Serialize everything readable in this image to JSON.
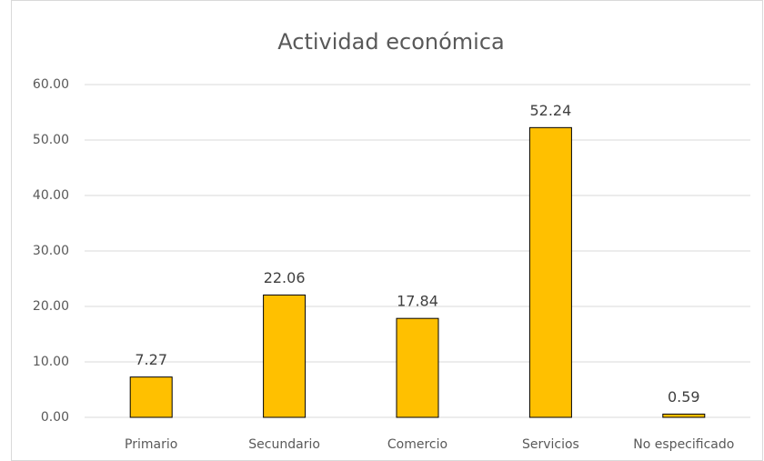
{
  "chart_data": {
    "type": "bar",
    "title": "Actividad económica",
    "categories": [
      "Primario",
      "Secundario",
      "Comercio",
      "Servicios",
      "No especificado"
    ],
    "values": [
      7.27,
      22.06,
      17.84,
      52.24,
      0.59
    ],
    "color": "#ffc000",
    "ylim": [
      0,
      60
    ],
    "yticks": [
      {
        "value": 0,
        "label": "0.00"
      },
      {
        "value": 10,
        "label": "10.00"
      },
      {
        "value": 20,
        "label": "20.00"
      },
      {
        "value": 30,
        "label": "30.00"
      },
      {
        "value": 40,
        "label": "40.00"
      },
      {
        "value": 50,
        "label": "50.00"
      },
      {
        "value": 60,
        "label": "60.00"
      }
    ],
    "grid": true
  }
}
